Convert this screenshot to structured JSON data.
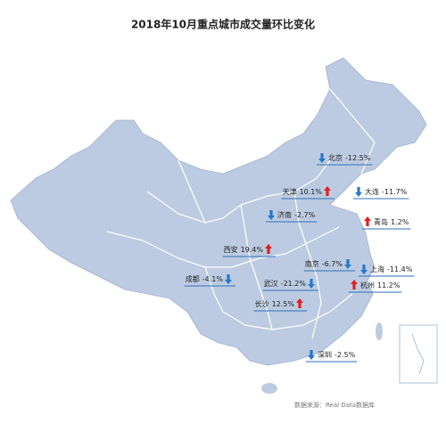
{
  "title": "2018年10月重点城市成交量环比变化",
  "cities": [
    {
      "name": "北京",
      "value": -12.5,
      "label": "-12.5%"
    },
    {
      "name": "天津",
      "value": 10.1,
      "label": "10.1%"
    },
    {
      "name": "大连",
      "value": -11.7,
      "label": "-11.7%"
    },
    {
      "name": "济南",
      "value": -2.7,
      "label": "-2.7%"
    },
    {
      "name": "青岛",
      "value": 1.2,
      "label": "1.2%"
    },
    {
      "name": "西安",
      "value": 19.4,
      "label": "19.4%"
    },
    {
      "name": "南京",
      "value": -6.7,
      "label": "-6.7%"
    },
    {
      "name": "上海",
      "value": -11.4,
      "label": "-11.4%"
    },
    {
      "name": "成都",
      "value": -4.1,
      "label": "-4.1%"
    },
    {
      "name": "武汉",
      "value": -21.2,
      "label": "-21.2%"
    },
    {
      "name": "杭州",
      "value": 11.2,
      "label": "11.2%"
    },
    {
      "name": "长沙",
      "value": 12.5,
      "label": "12.5%"
    },
    {
      "name": "深圳",
      "value": -2.5,
      "label": "-2.5%"
    }
  ],
  "source": "数据来源：Real Data数据库"
}
